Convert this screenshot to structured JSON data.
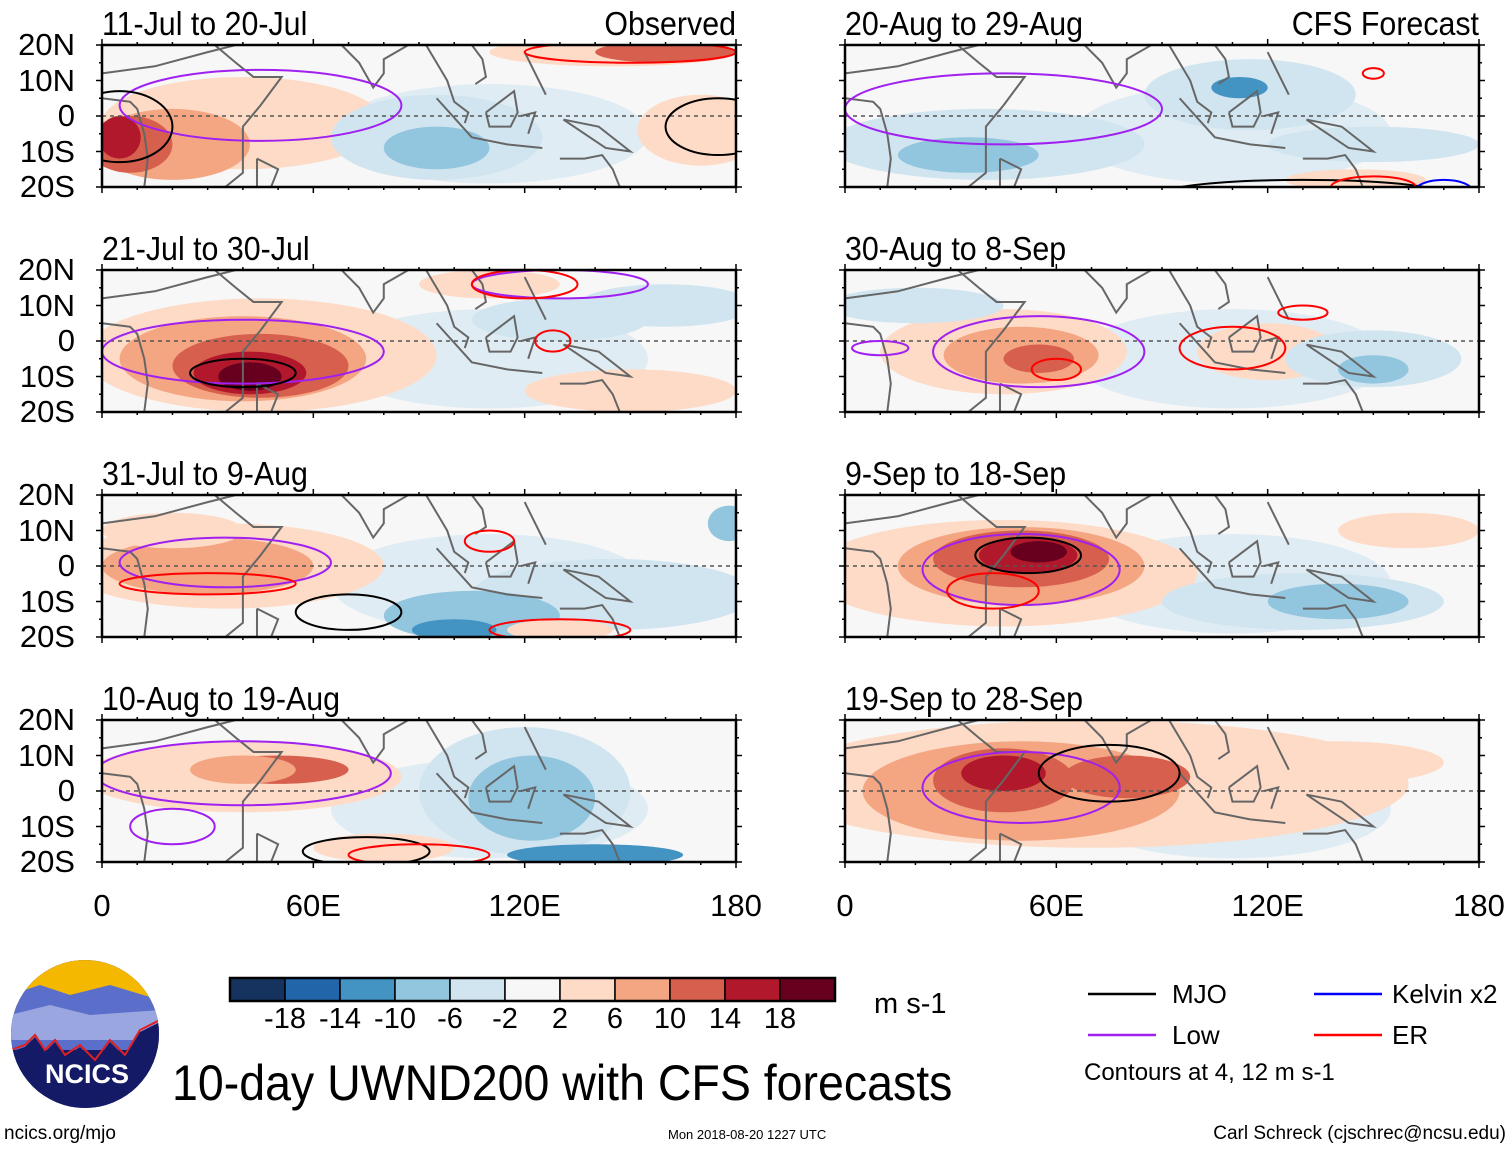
{
  "panels": [
    {
      "title": "11-Jul to 20-Jul",
      "tag": "Observed"
    },
    {
      "title": "21-Jul to 30-Jul"
    },
    {
      "title": "31-Jul to 9-Aug"
    },
    {
      "title": "10-Aug to 19-Aug"
    },
    {
      "title": "20-Aug to 29-Aug",
      "tag": "CFS Forecast"
    },
    {
      "title": "30-Aug to 8-Sep"
    },
    {
      "title": "9-Sep to 18-Sep"
    },
    {
      "title": "19-Sep to 28-Sep"
    }
  ],
  "lat_labels": [
    "20N",
    "10N",
    "0",
    "10S",
    "20S"
  ],
  "lon_labels": [
    "0",
    "60E",
    "120E",
    "180"
  ],
  "colorbar": {
    "labels": [
      "-18",
      "-14",
      "-10",
      "-6",
      "-2",
      "2",
      "6",
      "10",
      "14",
      "18"
    ],
    "colors": [
      "#16325e",
      "#2265a8",
      "#4393c3",
      "#92c5de",
      "#d1e5f0",
      "#f7f7f7",
      "#fddbc7",
      "#f4a582",
      "#d6604d",
      "#b2182b",
      "#67001f"
    ],
    "units": "m s-1"
  },
  "legend": {
    "items": [
      {
        "label": "MJO",
        "color": "#000000"
      },
      {
        "label": "Kelvin x2",
        "color": "#0000ff"
      },
      {
        "label": "Low",
        "color": "#a020f0"
      },
      {
        "label": "ER",
        "color": "#ff0000"
      }
    ],
    "note": "Contours at 4, 12 m s-1"
  },
  "title": "10-day UWND200 with CFS forecasts",
  "logo_text": "NCICS",
  "footer": {
    "left": "ncics.org/mjo",
    "center": "Mon 2018-08-20 1227 UTC",
    "right": "Carl Schreck (cjschrec@ncsu.edu)"
  }
}
